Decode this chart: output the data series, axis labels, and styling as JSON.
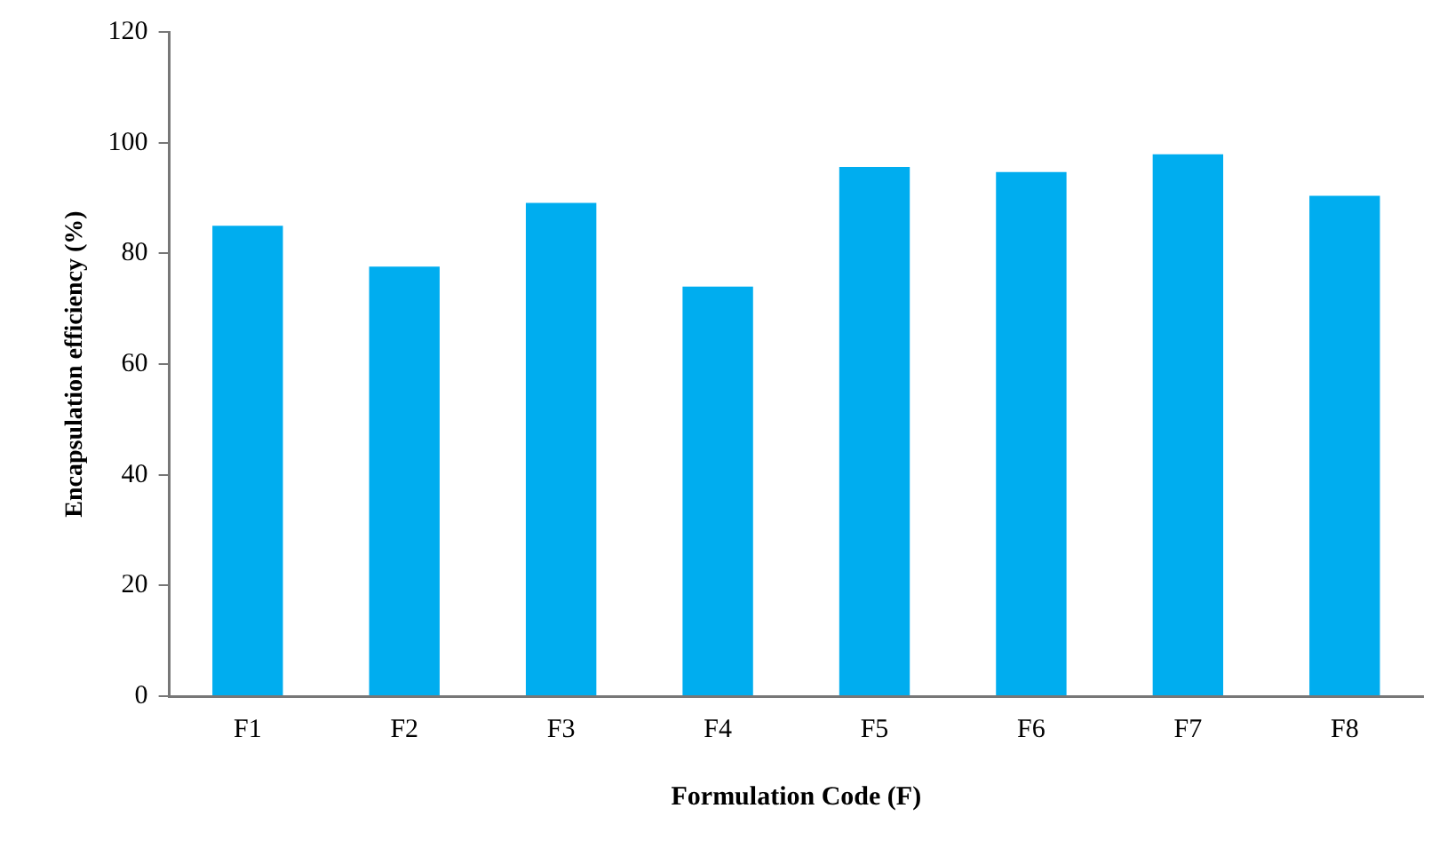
{
  "chart_data": {
    "type": "bar",
    "xlabel": "Formulation Code (F)",
    "ylabel": "Encapsulation efficiency (%)",
    "categories": [
      "F1",
      "F2",
      "F3",
      "F4",
      "F5",
      "F6",
      "F7",
      "F8"
    ],
    "values": [
      85.0,
      77.6,
      89.1,
      74.0,
      95.6,
      94.7,
      97.9,
      90.4
    ],
    "color": "#00adef",
    "ylim": [
      0,
      120
    ],
    "yticks": [
      0,
      20,
      40,
      60,
      80,
      100,
      120
    ],
    "grid": false,
    "legend": false
  }
}
